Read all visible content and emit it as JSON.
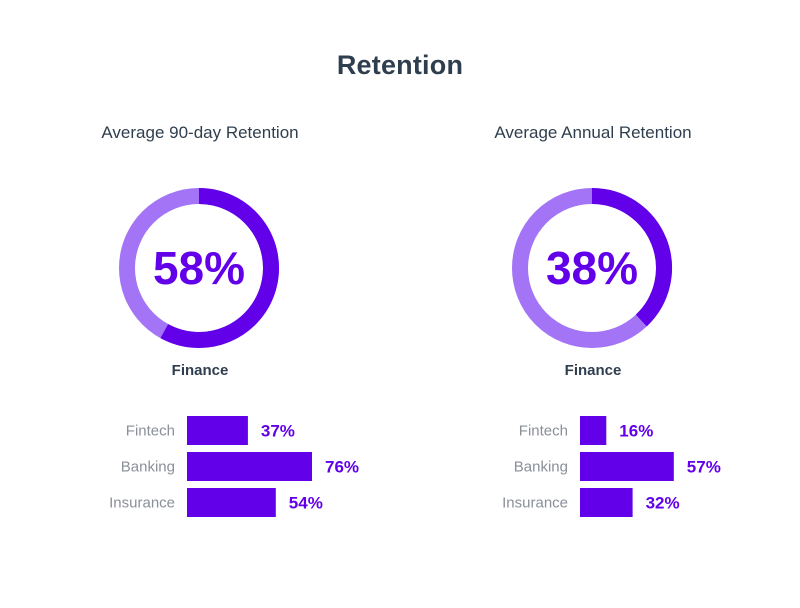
{
  "title": "Retention",
  "colors": {
    "primary": "#6200ea",
    "light": "#a374f5",
    "text": "#2f3e4e",
    "muted": "#8a8f99"
  },
  "chart_data": [
    {
      "type": "pie",
      "title": "Average 90-day Retention",
      "value_label": "58%",
      "value": 58,
      "label": "Finance"
    },
    {
      "type": "bar",
      "orientation": "horizontal",
      "categories": [
        "Fintech",
        "Banking",
        "Insurance"
      ],
      "values": [
        37,
        76,
        54
      ],
      "value_labels": [
        "37%",
        "76%",
        "54%"
      ]
    },
    {
      "type": "pie",
      "title": "Average Annual Retention",
      "value_label": "38%",
      "value": 38,
      "label": "Finance"
    },
    {
      "type": "bar",
      "orientation": "horizontal",
      "categories": [
        "Fintech",
        "Banking",
        "Insurance"
      ],
      "values": [
        16,
        57,
        32
      ],
      "value_labels": [
        "16%",
        "57%",
        "32%"
      ]
    }
  ]
}
